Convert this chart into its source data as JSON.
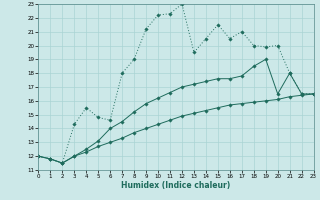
{
  "xlabel": "Humidex (Indice chaleur)",
  "bg_color": "#cce8e8",
  "grid_color": "#aad4d4",
  "line_color": "#1e6b5c",
  "xlim": [
    0,
    23
  ],
  "ylim": [
    11,
    23
  ],
  "x_ticks": [
    0,
    1,
    2,
    3,
    4,
    5,
    6,
    7,
    8,
    9,
    10,
    11,
    12,
    13,
    14,
    15,
    16,
    17,
    18,
    19,
    20,
    21,
    22,
    23
  ],
  "y_ticks": [
    11,
    12,
    13,
    14,
    15,
    16,
    17,
    18,
    19,
    20,
    21,
    22,
    23
  ],
  "s1_x": [
    0,
    1,
    2,
    3,
    4,
    5,
    6,
    7,
    8,
    9,
    10,
    11,
    12,
    13,
    14,
    15,
    16,
    17,
    18,
    19,
    20,
    21,
    22,
    23
  ],
  "s1_y": [
    12.0,
    11.8,
    11.5,
    14.3,
    15.5,
    14.8,
    14.6,
    18.0,
    19.0,
    21.2,
    22.2,
    22.3,
    23.0,
    19.5,
    20.5,
    21.5,
    20.5,
    21.0,
    20.0,
    19.9,
    20.0,
    18.0,
    16.5,
    16.5
  ],
  "s2_x": [
    0,
    1,
    2,
    3,
    4,
    5,
    6,
    7,
    8,
    9,
    10,
    11,
    12,
    13,
    14,
    15,
    16,
    17,
    18,
    19,
    20,
    21,
    22,
    23
  ],
  "s2_y": [
    12.0,
    11.8,
    11.5,
    12.0,
    12.5,
    13.1,
    14.0,
    14.5,
    15.2,
    15.8,
    16.2,
    16.6,
    17.0,
    17.2,
    17.4,
    17.6,
    17.6,
    17.8,
    18.5,
    19.0,
    16.5,
    18.0,
    16.5,
    16.5
  ],
  "s3_x": [
    0,
    1,
    2,
    3,
    4,
    5,
    6,
    7,
    8,
    9,
    10,
    11,
    12,
    13,
    14,
    15,
    16,
    17,
    18,
    19,
    20,
    21,
    22,
    23
  ],
  "s3_y": [
    12.0,
    11.8,
    11.5,
    12.0,
    12.3,
    12.7,
    13.0,
    13.3,
    13.7,
    14.0,
    14.3,
    14.6,
    14.9,
    15.1,
    15.3,
    15.5,
    15.7,
    15.8,
    15.9,
    16.0,
    16.1,
    16.3,
    16.4,
    16.5
  ]
}
